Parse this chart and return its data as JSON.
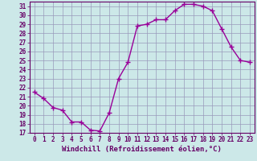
{
  "hours": [
    0,
    1,
    2,
    3,
    4,
    5,
    6,
    7,
    8,
    9,
    10,
    11,
    12,
    13,
    14,
    15,
    16,
    17,
    18,
    19,
    20,
    21,
    22,
    23
  ],
  "values": [
    21.5,
    20.8,
    19.8,
    19.5,
    18.2,
    18.2,
    17.3,
    17.2,
    19.2,
    23.0,
    24.8,
    28.8,
    29.0,
    29.5,
    29.5,
    30.5,
    31.2,
    31.2,
    31.0,
    30.5,
    28.5,
    26.5,
    25.0,
    24.8
  ],
  "line_color": "#990099",
  "marker": "+",
  "marker_size": 4,
  "linewidth": 1.0,
  "bg_color": "#cce8e8",
  "grid_color": "#9999bb",
  "xlabel": "Windchill (Refroidissement éolien,°C)",
  "xlabel_fontsize": 6.5,
  "ytick_labels": [
    "17",
    "18",
    "19",
    "20",
    "21",
    "22",
    "23",
    "24",
    "25",
    "26",
    "27",
    "28",
    "29",
    "30",
    "31"
  ],
  "ytick_values": [
    17,
    18,
    19,
    20,
    21,
    22,
    23,
    24,
    25,
    26,
    27,
    28,
    29,
    30,
    31
  ],
  "xtick_labels": [
    "0",
    "1",
    "2",
    "3",
    "4",
    "5",
    "6",
    "7",
    "8",
    "9",
    "10",
    "11",
    "12",
    "13",
    "14",
    "15",
    "16",
    "17",
    "18",
    "19",
    "20",
    "21",
    "22",
    "23"
  ],
  "xlim": [
    -0.5,
    23.5
  ],
  "ylim": [
    17,
    31.5
  ],
  "tick_fontsize": 5.5,
  "tick_color": "#660066",
  "spine_color": "#660066",
  "xlabel_color": "#660066",
  "title_color": "#660066"
}
